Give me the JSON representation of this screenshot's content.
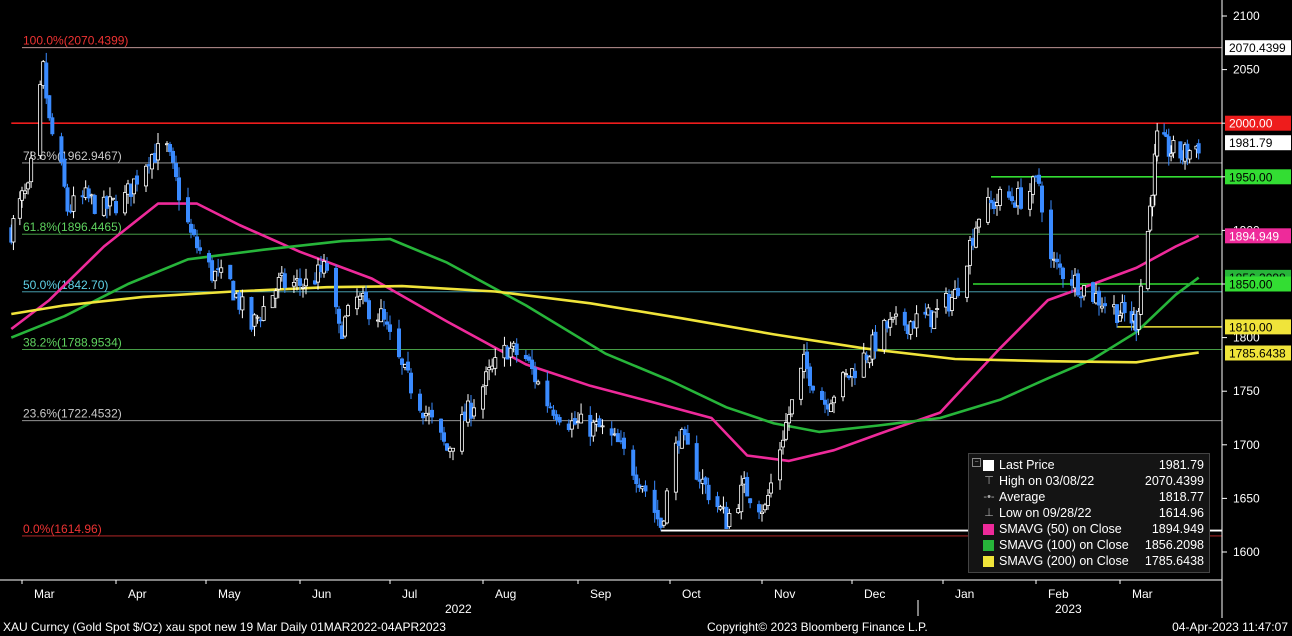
{
  "chart_data": {
    "type": "candlestick",
    "instrument": "XAU Curncy (Gold Spot  $/Oz) xau spot new 19 Mar  Daily 01MAR2022-04APR2023",
    "ylim": [
      1580,
      2110
    ],
    "y_ticks": [
      1600,
      1650,
      1700,
      1750,
      1800,
      1850,
      1900,
      1950,
      2000,
      2050,
      2100
    ],
    "x_ticks": [
      {
        "label": "Mar",
        "date": "2022-03-01"
      },
      {
        "label": "Apr",
        "date": "2022-04-01"
      },
      {
        "label": "May",
        "date": "2022-05-01"
      },
      {
        "label": "Jun",
        "date": "2022-06-01"
      },
      {
        "label": "Jul",
        "date": "2022-07-01"
      },
      {
        "label": "Aug",
        "date": "2022-08-01"
      },
      {
        "label": "Sep",
        "date": "2022-09-01"
      },
      {
        "label": "Oct",
        "date": "2022-10-01"
      },
      {
        "label": "Nov",
        "date": "2022-11-01"
      },
      {
        "label": "Dec",
        "date": "2022-12-01"
      },
      {
        "label": "Jan",
        "date": "2023-01-01"
      },
      {
        "label": "Feb",
        "date": "2023-02-01"
      },
      {
        "label": "Mar",
        "date": "2023-03-01"
      }
    ],
    "year_labels": [
      "2022",
      "2023"
    ],
    "price_path": [
      [
        "2022-02-24",
        1900
      ],
      [
        "2022-03-01",
        1930
      ],
      [
        "2022-03-03",
        1935
      ],
      [
        "2022-03-08",
        2050
      ],
      [
        "2022-03-10",
        2000
      ],
      [
        "2022-03-14",
        1955
      ],
      [
        "2022-03-16",
        1920
      ],
      [
        "2022-03-22",
        1930
      ],
      [
        "2022-03-28",
        1920
      ],
      [
        "2022-04-04",
        1930
      ],
      [
        "2022-04-12",
        1970
      ],
      [
        "2022-04-18",
        1975
      ],
      [
        "2022-04-22",
        1935
      ],
      [
        "2022-04-26",
        1895
      ],
      [
        "2022-05-03",
        1860
      ],
      [
        "2022-05-09",
        1850
      ],
      [
        "2022-05-16",
        1810
      ],
      [
        "2022-05-25",
        1850
      ],
      [
        "2022-06-03",
        1850
      ],
      [
        "2022-06-10",
        1865
      ],
      [
        "2022-06-14",
        1805
      ],
      [
        "2022-06-20",
        1835
      ],
      [
        "2022-06-28",
        1820
      ],
      [
        "2022-07-05",
        1770
      ],
      [
        "2022-07-13",
        1730
      ],
      [
        "2022-07-20",
        1695
      ],
      [
        "2022-07-27",
        1730
      ],
      [
        "2022-08-03",
        1765
      ],
      [
        "2022-08-09",
        1790
      ],
      [
        "2022-08-15",
        1780
      ],
      [
        "2022-08-22",
        1740
      ],
      [
        "2022-08-30",
        1720
      ],
      [
        "2022-09-08",
        1715
      ],
      [
        "2022-09-14",
        1700
      ],
      [
        "2022-09-22",
        1665
      ],
      [
        "2022-09-28",
        1625
      ],
      [
        "2022-10-04",
        1710
      ],
      [
        "2022-10-12",
        1665
      ],
      [
        "2022-10-20",
        1630
      ],
      [
        "2022-10-26",
        1660
      ],
      [
        "2022-11-02",
        1640
      ],
      [
        "2022-11-08",
        1710
      ],
      [
        "2022-11-15",
        1775
      ],
      [
        "2022-11-22",
        1740
      ],
      [
        "2022-11-30",
        1765
      ],
      [
        "2022-12-06",
        1785
      ],
      [
        "2022-12-13",
        1810
      ],
      [
        "2022-12-21",
        1815
      ],
      [
        "2022-12-29",
        1820
      ],
      [
        "2023-01-05",
        1840
      ],
      [
        "2023-01-13",
        1915
      ],
      [
        "2023-01-20",
        1930
      ],
      [
        "2023-01-27",
        1930
      ],
      [
        "2023-02-02",
        1945
      ],
      [
        "2023-02-06",
        1870
      ],
      [
        "2023-02-13",
        1855
      ],
      [
        "2023-02-20",
        1840
      ],
      [
        "2023-02-28",
        1825
      ],
      [
        "2023-03-08",
        1815
      ],
      [
        "2023-03-13",
        1900
      ],
      [
        "2023-03-17",
        1985
      ],
      [
        "2023-03-22",
        1975
      ],
      [
        "2023-03-28",
        1970
      ],
      [
        "2023-04-04",
        1980
      ]
    ],
    "moving_averages": [
      {
        "name": "SMAVG (50)  on Close",
        "color": "#ee2a9a",
        "value": "1894.949",
        "points": [
          [
            "2022-02-24",
            1808
          ],
          [
            "2022-03-10",
            1835
          ],
          [
            "2022-03-28",
            1885
          ],
          [
            "2022-04-15",
            1925
          ],
          [
            "2022-04-28",
            1925
          ],
          [
            "2022-05-12",
            1905
          ],
          [
            "2022-06-01",
            1880
          ],
          [
            "2022-06-25",
            1855
          ],
          [
            "2022-07-20",
            1815
          ],
          [
            "2022-08-15",
            1775
          ],
          [
            "2022-09-05",
            1755
          ],
          [
            "2022-09-25",
            1740
          ],
          [
            "2022-10-15",
            1725
          ],
          [
            "2022-10-27",
            1690
          ],
          [
            "2022-11-10",
            1685
          ],
          [
            "2022-11-25",
            1695
          ],
          [
            "2022-12-10",
            1710
          ],
          [
            "2022-12-31",
            1730
          ],
          [
            "2023-01-20",
            1790
          ],
          [
            "2023-02-05",
            1835
          ],
          [
            "2023-02-20",
            1850
          ],
          [
            "2023-03-08",
            1865
          ],
          [
            "2023-03-25",
            1885
          ],
          [
            "2023-04-04",
            1895
          ]
        ]
      },
      {
        "name": "SMAVG (100)  on Close",
        "color": "#27b53a",
        "value": "1856.2098",
        "points": [
          [
            "2022-02-24",
            1800
          ],
          [
            "2022-03-15",
            1820
          ],
          [
            "2022-04-05",
            1850
          ],
          [
            "2022-04-25",
            1873
          ],
          [
            "2022-05-20",
            1882
          ],
          [
            "2022-06-15",
            1890
          ],
          [
            "2022-07-01",
            1892
          ],
          [
            "2022-07-20",
            1870
          ],
          [
            "2022-08-15",
            1830
          ],
          [
            "2022-09-10",
            1785
          ],
          [
            "2022-10-01",
            1760
          ],
          [
            "2022-10-20",
            1735
          ],
          [
            "2022-11-05",
            1720
          ],
          [
            "2022-11-20",
            1712
          ],
          [
            "2022-12-10",
            1718
          ],
          [
            "2022-12-31",
            1725
          ],
          [
            "2023-01-20",
            1742
          ],
          [
            "2023-02-05",
            1762
          ],
          [
            "2023-02-20",
            1780
          ],
          [
            "2023-03-08",
            1805
          ],
          [
            "2023-03-25",
            1840
          ],
          [
            "2023-04-04",
            1856
          ]
        ]
      },
      {
        "name": "SMAVG (200)  on Close",
        "color": "#f0e43a",
        "value": "1785.6438",
        "points": [
          [
            "2022-02-24",
            1822
          ],
          [
            "2022-03-15",
            1830
          ],
          [
            "2022-04-10",
            1838
          ],
          [
            "2022-05-10",
            1843
          ],
          [
            "2022-06-10",
            1847
          ],
          [
            "2022-07-05",
            1848
          ],
          [
            "2022-08-05",
            1843
          ],
          [
            "2022-09-05",
            1832
          ],
          [
            "2022-10-05",
            1818
          ],
          [
            "2022-11-05",
            1803
          ],
          [
            "2022-12-05",
            1790
          ],
          [
            "2023-01-05",
            1780
          ],
          [
            "2023-02-05",
            1778
          ],
          [
            "2023-03-08",
            1777
          ],
          [
            "2023-03-25",
            1783
          ],
          [
            "2023-04-04",
            1786
          ]
        ]
      }
    ],
    "fibonacci_levels": [
      {
        "label": "100.0%(2070.4399)",
        "value": 2070.4399,
        "color": "#ee3333",
        "line": "#ffc8c8"
      },
      {
        "label": "78.6%(1962.9467)",
        "value": 1962.9467,
        "color": "#c8c8c8",
        "line": "#c8c8c8"
      },
      {
        "label": "61.8%(1896.4465)",
        "value": 1896.4465,
        "color": "#5fd35f",
        "line": "#5fd35f"
      },
      {
        "label": "50.0%(1842.70)",
        "value": 1842.7,
        "color": "#5fd3e8",
        "line": "#5fd3e8"
      },
      {
        "label": "38.2%(1788.9534)",
        "value": 1788.9534,
        "color": "#5fd35f",
        "line": "#5fd35f"
      },
      {
        "label": "23.6%(1722.4532)",
        "value": 1722.4532,
        "color": "#c8c8c8",
        "line": "#c8c8c8"
      },
      {
        "label": "0.0%(1614.96)",
        "value": 1614.96,
        "color": "#ee3333",
        "line": "#ee3333"
      }
    ],
    "horizontal_lines": [
      {
        "value": 2000.0,
        "color": "#ee1c1c",
        "width": 1.6,
        "from": "2022-02-24"
      },
      {
        "value": 1950.0,
        "color": "#33dd33",
        "width": 1.6,
        "from": "2023-01-17"
      },
      {
        "value": 1850.0,
        "color": "#33dd33",
        "width": 1.6,
        "from": "2023-01-11"
      },
      {
        "value": 1810.0,
        "color": "#f0e43a",
        "width": 1.6,
        "from": "2023-02-28"
      },
      {
        "value": 1620.0,
        "color": "#ffffff",
        "width": 1.8,
        "from": "2022-09-28"
      }
    ],
    "axis_tags": [
      {
        "value": 2070.4399,
        "label": "2070.4399",
        "bg": "#ffffff",
        "fg": "#000000"
      },
      {
        "value": 2000.0,
        "label": "2000.00",
        "bg": "#ee1c1c",
        "fg": "#ffffff"
      },
      {
        "value": 1981.79,
        "label": "1981.79",
        "bg": "#ffffff",
        "fg": "#000000"
      },
      {
        "value": 1950.0,
        "label": "1950.00",
        "bg": "#33dd33",
        "fg": "#000000"
      },
      {
        "value": 1894.949,
        "label": "1894.949",
        "bg": "#ee2a9a",
        "fg": "#ffffff"
      },
      {
        "value": 1856.2098,
        "label": "1856.2098",
        "bg": "#27b53a",
        "fg": "#000000"
      },
      {
        "value": 1850.0,
        "label": "1850.00",
        "bg": "#33dd33",
        "fg": "#000000"
      },
      {
        "value": 1810.0,
        "label": "1810.00",
        "bg": "#f0e43a",
        "fg": "#000000"
      },
      {
        "value": 1785.6438,
        "label": "1785.6438",
        "bg": "#f0e43a",
        "fg": "#000000"
      }
    ]
  },
  "legend": {
    "last_price": {
      "label": "Last Price",
      "value": "1981.79",
      "icon": "square-icon",
      "color": "#ffffff"
    },
    "high": {
      "label": "High on 03/08/22",
      "value": "2070.4399",
      "icon": "high-marker-icon"
    },
    "average": {
      "label": "Average",
      "value": "1818.77",
      "icon": "average-marker-icon"
    },
    "low": {
      "label": "Low on 09/28/22",
      "value": "1614.96",
      "icon": "low-marker-icon"
    },
    "sma50": {
      "label": "SMAVG (50)  on Close",
      "value": "1894.949",
      "color": "#ee2a9a"
    },
    "sma100": {
      "label": "SMAVG (100)  on Close",
      "value": "1856.2098",
      "color": "#27b53a"
    },
    "sma200": {
      "label": "SMAVG (200)  on Close",
      "value": "1785.6438",
      "color": "#f0e43a"
    }
  },
  "footer": {
    "left": "XAU Curncy (Gold Spot  $/Oz) xau spot new 19 Mar  Daily 01MAR2022-04APR2023",
    "center": "Copyright© 2023 Bloomberg Finance L.P.",
    "right": "04-Apr-2023 11:47:07"
  },
  "years": {
    "y2022": "2022",
    "y2023": "2023"
  }
}
